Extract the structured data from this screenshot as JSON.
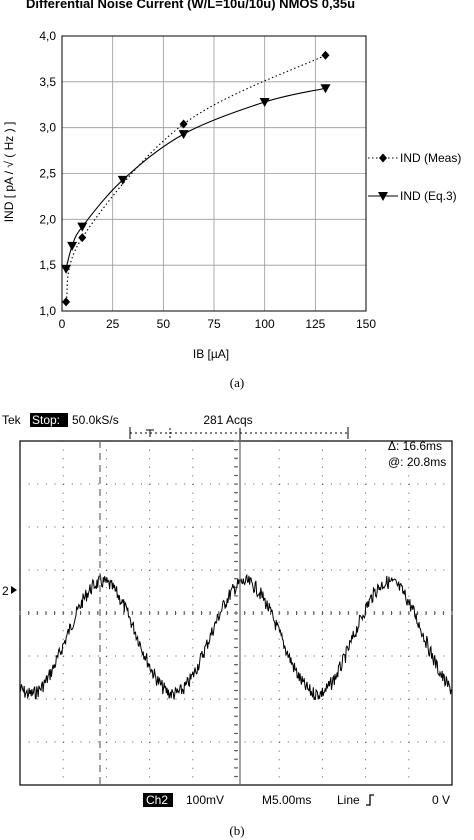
{
  "chart_data": [
    {
      "type": "line",
      "title": "Differential Noise Current  (W/L=10u/10u) NMOS 0,35u",
      "xlabel": "IB [µA]",
      "ylabel": "IND [ pA / √ ( Hz ) ]",
      "xlim": [
        0,
        150
      ],
      "ylim": [
        1.0,
        4.0
      ],
      "xticks": [
        "0",
        "25",
        "50",
        "75",
        "100",
        "125",
        "150"
      ],
      "yticks": [
        "1,0",
        "1,5",
        "2,0",
        "2,5",
        "3,0",
        "3,5",
        "4,0"
      ],
      "grid": true,
      "legend_placement": "right",
      "series": [
        {
          "name": "IND (Meas)",
          "style": "dotted",
          "marker": "diamond",
          "x": [
            2,
            10,
            60,
            130
          ],
          "y": [
            1.1,
            1.8,
            3.04,
            3.79
          ]
        },
        {
          "name": "IND (Eq.3)",
          "style": "solid",
          "marker": "triangle-down",
          "x": [
            2,
            5,
            10,
            30,
            60,
            100,
            130
          ],
          "y": [
            1.46,
            1.71,
            1.92,
            2.43,
            2.93,
            3.28,
            3.43
          ]
        }
      ],
      "caption": "(a)"
    },
    {
      "type": "line",
      "subtype": "oscilloscope-trace",
      "header": {
        "brand": "Tek",
        "state": "Stop:",
        "rate": "50.0kS/s",
        "acqs": "281 Acqs"
      },
      "cursor_readout": {
        "delta": "Δ: 16.6ms",
        "at": "@: 20.8ms"
      },
      "channel_marker": "2",
      "footer": {
        "channel": "Ch2",
        "volts_per_div": "100mV",
        "time_per_div": "M5.00ms",
        "trigger": "Line",
        "trigger_level": "0 V"
      },
      "waveform": {
        "shape": "noisy sine",
        "period_ms": 16.6,
        "amplitude_div": 1.3,
        "offset_div": 0.0
      },
      "caption": "(b)"
    }
  ]
}
